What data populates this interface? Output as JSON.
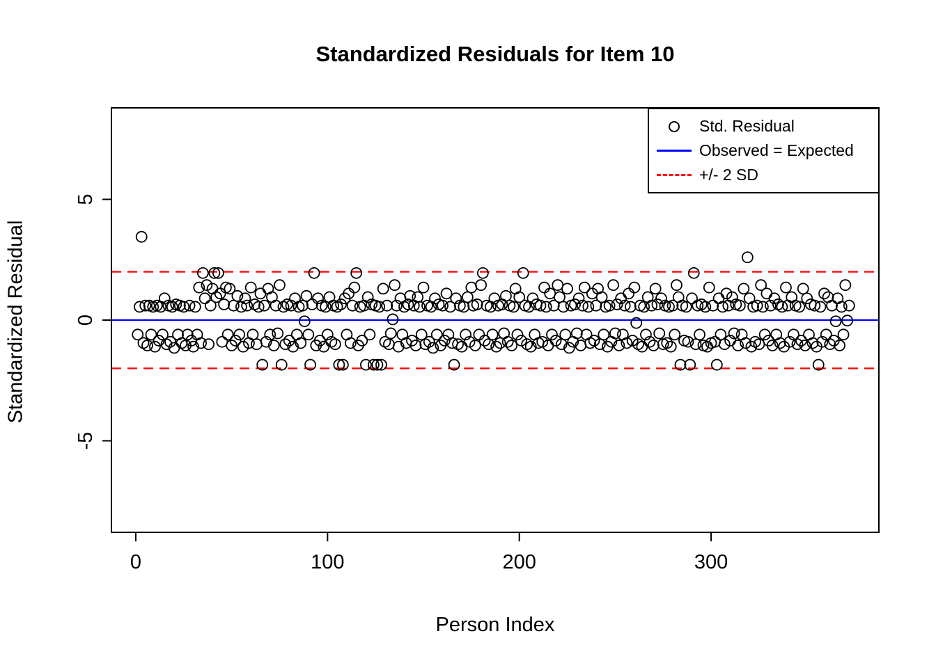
{
  "title": "Standardized Residuals for Item 10",
  "legend": {
    "items": [
      {
        "symbol": "circle-icon",
        "label": "Std. Residual",
        "color": "#000000"
      },
      {
        "symbol": "solid-line-icon",
        "label": "Observed = Expected",
        "color": "#0000ff"
      },
      {
        "symbol": "dashed-line-icon",
        "label": "+/- 2 SD",
        "color": "#ff0000"
      }
    ]
  },
  "colors": {
    "points": "#000000",
    "zero_line": "#0000ff",
    "sd_lines": "#ff0000",
    "axis": "#000000",
    "background": "#ffffff"
  },
  "chart_data": {
    "type": "scatter",
    "title": "Standardized Residuals for Item 10",
    "xlabel": "Person Index",
    "ylabel": "Standardized Residual",
    "xlim": [
      -12.7,
      387.5
    ],
    "ylim": [
      -8.79,
      8.79
    ],
    "x_ticks": [
      0,
      100,
      200,
      300
    ],
    "y_ticks": [
      -5,
      0,
      5
    ],
    "grid": false,
    "legend_position": "topright",
    "point_style": "open-circle",
    "reference_lines": [
      {
        "y": 0,
        "style": "solid",
        "color": "#0000ff",
        "meaning": "Observed = Expected"
      },
      {
        "y": 2,
        "style": "dashed",
        "color": "#ff0000",
        "meaning": "+2 SD"
      },
      {
        "y": -2,
        "style": "dashed",
        "color": "#ff0000",
        "meaning": "-2 SD"
      }
    ],
    "x_meaning": "Person Index, implicit 1..372 matching residuals array order",
    "x_start": 1,
    "residuals": [
      -0.6,
      0.55,
      3.45,
      -0.95,
      0.6,
      -1.05,
      0.6,
      -0.6,
      0.55,
      -1.1,
      0.6,
      -0.85,
      0.55,
      -0.6,
      0.9,
      -1.0,
      0.6,
      -0.9,
      0.55,
      -1.15,
      0.65,
      -0.6,
      0.6,
      -0.95,
      0.55,
      -1.05,
      -0.6,
      0.6,
      -0.85,
      -1.1,
      0.55,
      -0.6,
      1.35,
      -0.95,
      1.95,
      0.9,
      1.45,
      -1.0,
      0.6,
      1.3,
      1.95,
      0.95,
      1.95,
      1.1,
      -0.9,
      0.65,
      1.35,
      -0.6,
      1.3,
      -1.05,
      0.6,
      -0.85,
      1.0,
      -0.6,
      0.55,
      -1.1,
      0.9,
      0.6,
      -0.95,
      1.35,
      -0.6,
      0.65,
      -1.0,
      0.55,
      1.1,
      -1.85,
      0.6,
      -0.9,
      1.3,
      -0.6,
      0.95,
      -1.05,
      0.6,
      -0.55,
      1.45,
      -1.85,
      0.55,
      -1.0,
      0.65,
      -0.85,
      0.6,
      -1.1,
      0.9,
      -0.6,
      0.55,
      -0.95,
      0.6,
      -0.05,
      1.0,
      -0.6,
      -1.85,
      0.65,
      1.95,
      -1.05,
      0.9,
      -0.85,
      0.6,
      -1.1,
      0.55,
      -0.6,
      0.95,
      -0.9,
      0.6,
      -1.0,
      0.55,
      -1.85,
      0.65,
      -1.85,
      0.9,
      -0.6,
      1.1,
      -0.95,
      0.6,
      1.35,
      1.95,
      -1.05,
      0.55,
      -0.85,
      0.6,
      -1.85,
      0.95,
      -0.6,
      0.65,
      -1.85,
      0.6,
      -1.85,
      0.55,
      -1.85,
      1.3,
      -0.9,
      0.6,
      -1.0,
      -0.55,
      0.03,
      1.45,
      0.6,
      -1.1,
      0.9,
      -0.6,
      0.55,
      -0.95,
      0.65,
      1.0,
      -0.85,
      0.6,
      -1.05,
      0.95,
      0.55,
      -0.6,
      1.35,
      -1.0,
      0.6,
      -0.9,
      0.55,
      -1.15,
      0.9,
      -0.6,
      0.65,
      -1.05,
      0.6,
      -0.85,
      1.1,
      -0.6,
      0.55,
      -0.95,
      -1.85,
      0.9,
      -1.0,
      0.6,
      -1.1,
      0.55,
      -0.6,
      0.95,
      -0.9,
      1.35,
      0.6,
      -1.05,
      0.65,
      -0.6,
      1.45,
      1.95,
      -0.85,
      0.6,
      -1.0,
      0.55,
      -0.6,
      0.9,
      -1.1,
      0.6,
      -0.95,
      0.65,
      -0.55,
      1.0,
      -0.9,
      0.6,
      -1.05,
      0.55,
      1.3,
      -0.6,
      0.95,
      -0.85,
      1.95,
      0.6,
      -1.0,
      0.55,
      -1.1,
      0.9,
      -0.6,
      0.65,
      -0.95,
      0.6,
      -0.9,
      1.35,
      0.55,
      -1.05,
      1.1,
      -0.6,
      0.6,
      -0.85,
      1.45,
      0.95,
      -1.0,
      0.55,
      -0.6,
      1.3,
      -1.15,
      0.6,
      -0.9,
      0.65,
      -0.55,
      0.9,
      -1.05,
      0.6,
      1.35,
      -0.6,
      0.55,
      -0.95,
      1.1,
      -0.85,
      0.6,
      1.3,
      -1.0,
      0.95,
      -0.6,
      0.55,
      -1.1,
      0.6,
      -0.9,
      1.45,
      -0.55,
      0.65,
      -1.05,
      0.9,
      -0.6,
      0.6,
      -0.95,
      1.1,
      0.55,
      -0.85,
      1.35,
      -0.12,
      -1.0,
      0.6,
      -1.1,
      0.55,
      -0.6,
      0.95,
      -0.9,
      0.6,
      -1.05,
      1.3,
      0.65,
      -0.55,
      0.9,
      -1.0,
      0.6,
      -0.95,
      0.55,
      -1.1,
      0.6,
      -0.6,
      1.45,
      0.95,
      -1.85,
      0.6,
      -0.85,
      0.55,
      -0.9,
      -1.85,
      0.9,
      1.95,
      -1.0,
      0.6,
      -0.6,
      0.65,
      -1.05,
      0.55,
      -1.1,
      1.35,
      -0.95,
      0.6,
      -0.9,
      -1.85,
      0.9,
      -0.6,
      0.55,
      -1.0,
      1.1,
      0.6,
      -0.85,
      0.95,
      -0.55,
      0.65,
      -1.05,
      0.6,
      -0.6,
      1.3,
      -0.95,
      2.6,
      0.9,
      -1.1,
      0.55,
      -0.9,
      0.6,
      -1.0,
      1.45,
      0.55,
      -0.6,
      1.1,
      -0.85,
      0.6,
      -1.05,
      0.9,
      -0.6,
      0.65,
      -0.95,
      0.55,
      -1.1,
      1.35,
      0.6,
      -0.9,
      0.95,
      -0.6,
      0.6,
      -1.0,
      0.55,
      -0.85,
      1.3,
      -1.05,
      0.9,
      -0.6,
      0.65,
      -0.95,
      0.6,
      -1.1,
      -1.85,
      0.55,
      -0.9,
      1.1,
      -0.6,
      0.95,
      -1.0,
      0.6,
      -0.85,
      -0.05,
      0.9,
      -1.05,
      0.55,
      -0.6,
      1.45,
      -0.02,
      0.6
    ]
  }
}
